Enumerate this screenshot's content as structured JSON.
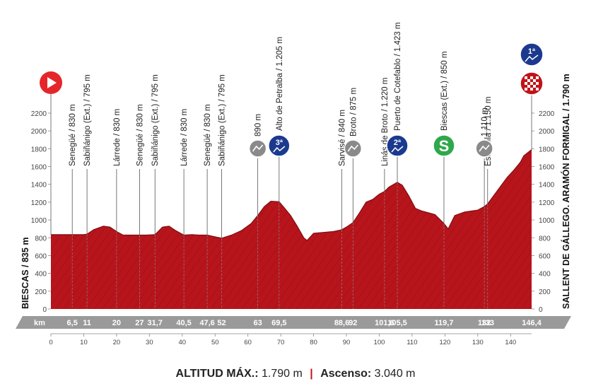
{
  "chart_data": {
    "type": "area",
    "title": "",
    "xlabel": "",
    "ylabel": "",
    "xlim": [
      0,
      146.4
    ],
    "ylim": [
      0,
      2200
    ],
    "y_ticks": [
      0,
      200,
      400,
      600,
      800,
      1000,
      1200,
      1400,
      1600,
      1800,
      2000,
      2200
    ],
    "x_ticks": [
      0,
      10,
      20,
      30,
      40,
      50,
      60,
      70,
      80,
      90,
      100,
      110,
      120,
      130,
      140
    ],
    "km_unit": "km",
    "km_marks": [
      "6,5",
      "11",
      "20",
      "27",
      "31,7",
      "40,5",
      "47,6",
      "52",
      "63",
      "69,5",
      "88,6",
      "92",
      "101,6",
      "105,5",
      "119,7",
      "132",
      "133",
      "146,4"
    ],
    "start_label": "BIESCAS / 835 m",
    "finish_label": "SALLENT DE GÁLLEGO. ARAMÓN FORMIGAL / 1.790 m",
    "profile": {
      "x": [
        0,
        5,
        10,
        11,
        13,
        16,
        18,
        20,
        22,
        25,
        27,
        29,
        31.7,
        34,
        36,
        38,
        40.5,
        43,
        45,
        47.6,
        50,
        52,
        55,
        58,
        61,
        63,
        65,
        67,
        69.5,
        71,
        73,
        75,
        77,
        78,
        80,
        83,
        86,
        88.6,
        90,
        92,
        94,
        96,
        98,
        100,
        101.6,
        103,
        105.5,
        107,
        109,
        111,
        113,
        115,
        117,
        119.7,
        121,
        123,
        126,
        128,
        130,
        132,
        133,
        135,
        137,
        139,
        141,
        143,
        144,
        146.4
      ],
      "y": [
        835,
        835,
        835,
        840,
        890,
        930,
        920,
        870,
        830,
        830,
        830,
        830,
        835,
        920,
        930,
        880,
        830,
        835,
        830,
        830,
        810,
        795,
        830,
        880,
        960,
        1050,
        1150,
        1210,
        1205,
        1140,
        1050,
        930,
        800,
        770,
        850,
        860,
        870,
        890,
        920,
        970,
        1080,
        1200,
        1230,
        1290,
        1320,
        1370,
        1423,
        1390,
        1270,
        1130,
        1100,
        1080,
        1060,
        960,
        900,
        1050,
        1090,
        1100,
        1110,
        1150,
        1180,
        1280,
        1380,
        1480,
        1560,
        1650,
        1720,
        1790
      ]
    },
    "points": [
      {
        "km": 6.5,
        "label": "Senegüé / 830 m"
      },
      {
        "km": 11,
        "label": "Sabiñánigo (Ext.) / 795 m"
      },
      {
        "km": 20,
        "label": "Lárrede / 830 m"
      },
      {
        "km": 27,
        "label": "Senegüé / 830 m"
      },
      {
        "km": 31.7,
        "label": "Sabiñánigo (Ext.) / 795 m"
      },
      {
        "km": 40.5,
        "label": "Lárrede / 830 m"
      },
      {
        "km": 47.6,
        "label": "Senegüé / 830 m"
      },
      {
        "km": 52,
        "label": "Sabiñánigo (Ext.) / 795 m"
      },
      {
        "km": 63,
        "label": "890 m",
        "marker": "climb-gray"
      },
      {
        "km": 69.5,
        "label": "Alto de Petralba / 1.205 m",
        "marker": "cat",
        "cat": "3ª"
      },
      {
        "km": 88.6,
        "label": "Sarvisé / 840 m"
      },
      {
        "km": 92,
        "label": "Broto / 875 m",
        "marker": "climb-gray"
      },
      {
        "km": 101.6,
        "label": "Linás de Broto / 1.220 m"
      },
      {
        "km": 105.5,
        "label": "Puerto de Cotefablo / 1.423 m",
        "marker": "cat",
        "cat": "2ª"
      },
      {
        "km": 119.7,
        "label": "Biescas (Ext.) / 850 m",
        "marker": "sprint",
        "sprint": "S"
      },
      {
        "km": 132,
        "label": "1.110 m",
        "marker": "climb-gray"
      },
      {
        "km": 133,
        "label": "Escarrilla / 1.150 m"
      },
      {
        "km": 146.4,
        "label": "",
        "marker": "finish",
        "cat": "1ª"
      }
    ],
    "colors": {
      "fill": "#b8141b",
      "fill_dark": "#7e0d11",
      "km_bar": "#9a9a9a",
      "cat_marker": "#1b3a8f",
      "sprint_marker": "#2ea84a",
      "start_marker": "#e4262a",
      "gray_marker": "#8a8a8a"
    }
  },
  "footer": {
    "altitude_label": "ALTITUD MÁX.:",
    "altitude_value": "1.790 m",
    "separator": "|",
    "ascent_label": "Ascenso:",
    "ascent_value": "3.040 m"
  }
}
